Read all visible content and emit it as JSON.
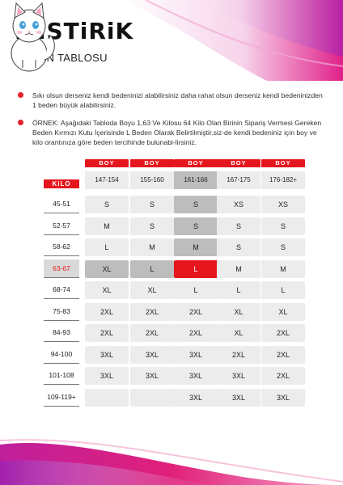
{
  "brand": {
    "name": "MiSTiRiK",
    "subtitle": "BEDEN TABLOSU"
  },
  "notes": [
    "Sıkı olsun derseniz kendi bedeninizi alabilirsiniz daha rahat olsun derseniz kendi bedeninizden 1 beden büyük alabilirsiniz.",
    "ÖRNEK: Aşağıdaki Tabloda Boyu 1,63 Ve Kilosu 64 Kilo Olan Birinin Sipariş Vermesi Gereken Beden Kırmızı Kutu İçerisinde L Beden Olarak Belirtilmiştir.siz-de kendi bedeniniz için boy ve kilo orantınıza göre beden tercihinde bulunabi-lirsiniz."
  ],
  "table": {
    "boy_label": "BOY",
    "kilo_label": "KiLO",
    "heights": [
      "147-154",
      "155-160",
      "161-166",
      "167-175",
      "176-182+"
    ],
    "weights": [
      "45-51",
      "52-57",
      "58-62",
      "63-67",
      "68-74",
      "75-83",
      "84-93",
      "94-100",
      "101-108",
      "109-119+"
    ],
    "rows": [
      [
        "S",
        "S",
        "S",
        "XS",
        "XS"
      ],
      [
        "M",
        "S",
        "S",
        "S",
        "S"
      ],
      [
        "L",
        "M",
        "M",
        "S",
        "S"
      ],
      [
        "XL",
        "L",
        "L",
        "M",
        "M"
      ],
      [
        "XL",
        "XL",
        "L",
        "L",
        "L"
      ],
      [
        "2XL",
        "2XL",
        "2XL",
        "XL",
        "XL"
      ],
      [
        "2XL",
        "2XL",
        "2XL",
        "XL",
        "2XL"
      ],
      [
        "3XL",
        "3XL",
        "3XL",
        "2XL",
        "2XL"
      ],
      [
        "3XL",
        "3XL",
        "3XL",
        "3XL",
        "2XL"
      ],
      [
        "",
        "",
        "3XL",
        "3XL",
        "3XL"
      ]
    ],
    "highlight_column": 2,
    "highlight_row": 3,
    "colors": {
      "accent": "#e5161e",
      "cell": "#ececec",
      "cell_gray": "#bdbdbd"
    }
  }
}
